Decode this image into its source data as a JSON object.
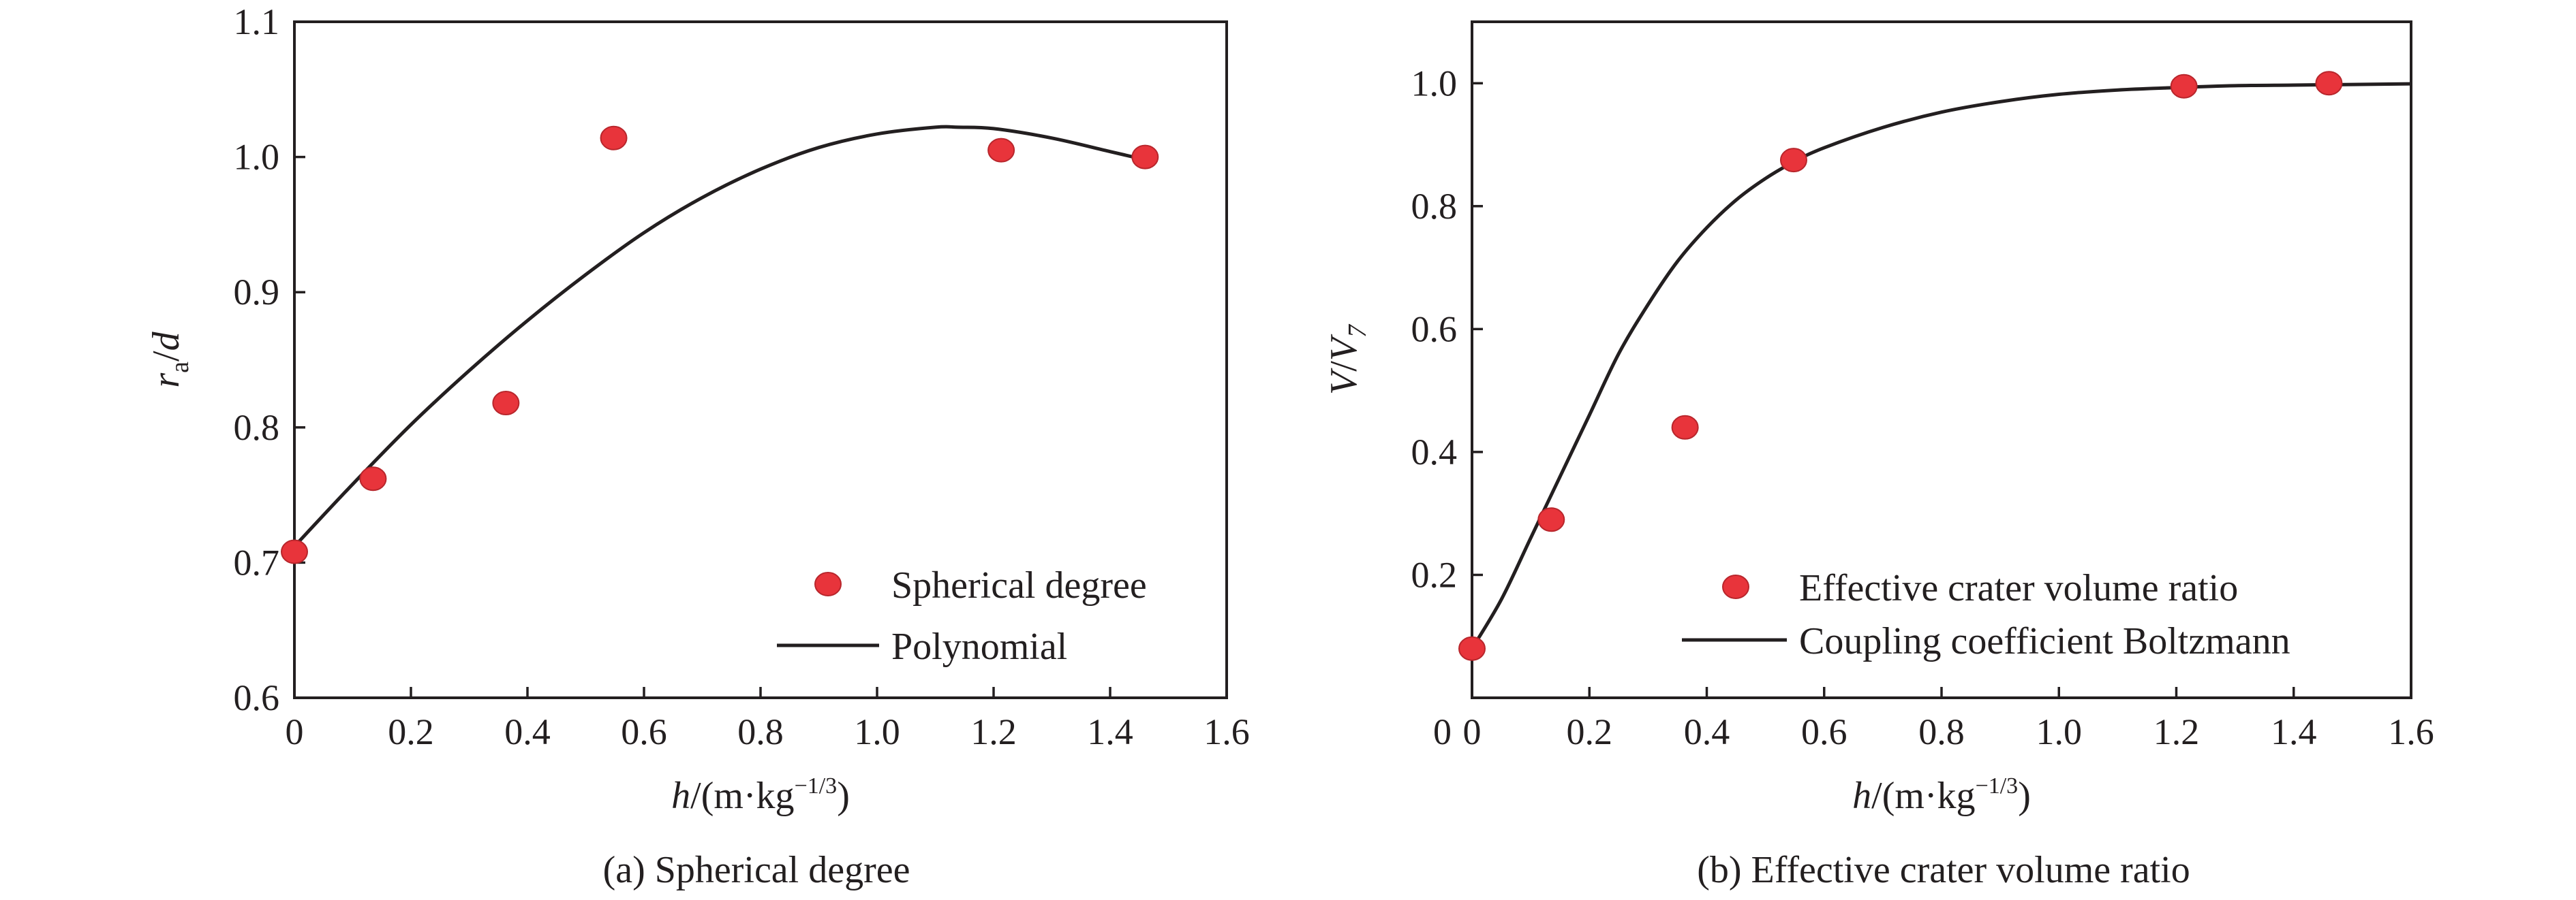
{
  "colors": {
    "points": "#e8343b",
    "line": "#231f20"
  },
  "chart_data": [
    {
      "type": "scatter",
      "caption": "(a) Spherical degree",
      "xlabel": {
        "var": "h",
        "rest": "/(m·kg",
        "sup": "−1/3",
        "close": ")"
      },
      "ylabel": {
        "var": "r",
        "sub": "a",
        "rest": "/",
        "var2": "d"
      },
      "xlim": [
        0,
        1.6
      ],
      "ylim": [
        0.6,
        1.1
      ],
      "xticks": [
        0,
        0.2,
        0.4,
        0.6,
        0.8,
        1.0,
        1.2,
        1.4,
        1.6
      ],
      "xtick_labels": [
        "0",
        "0.2",
        "0.4",
        "0.6",
        "0.8",
        "1.0",
        "1.2",
        "1.4",
        "1.6"
      ],
      "yticks": [
        0.6,
        0.7,
        0.8,
        0.9,
        1.0,
        1.1
      ],
      "ytick_labels": [
        "0.6",
        "0.7",
        "0.8",
        "0.9",
        "1.0",
        "1.1"
      ],
      "legend_position": "bottom-right",
      "series": [
        {
          "name": "Spherical degree",
          "kind": "points",
          "x": [
            0.0,
            0.135,
            0.363,
            0.548,
            1.213,
            1.46
          ],
          "y": [
            0.708,
            0.762,
            0.818,
            1.014,
            1.005,
            1.0
          ]
        },
        {
          "name": "Polynomial",
          "kind": "line",
          "x": [
            0.0,
            0.1,
            0.2,
            0.3,
            0.4,
            0.5,
            0.6,
            0.7,
            0.8,
            0.9,
            1.0,
            1.1,
            1.14,
            1.2,
            1.3,
            1.4,
            1.46
          ],
          "y": [
            0.712,
            0.758,
            0.802,
            0.842,
            0.879,
            0.913,
            0.944,
            0.97,
            0.991,
            1.007,
            1.017,
            1.022,
            1.022,
            1.021,
            1.014,
            1.004,
            0.998
          ]
        }
      ]
    },
    {
      "type": "scatter",
      "caption": "(b) Effective crater volume ratio",
      "xlabel": {
        "var": "h",
        "rest": "/(m·kg",
        "sup": "−1/3",
        "close": ")"
      },
      "ylabel": {
        "var": "V",
        "rest": "/",
        "var2": "V",
        "sub2": "7"
      },
      "xlim": [
        0,
        1.6
      ],
      "ylim": [
        0,
        1.1
      ],
      "xticks": [
        0,
        0.2,
        0.4,
        0.6,
        0.8,
        1.0,
        1.2,
        1.4,
        1.6
      ],
      "xtick_labels": [
        "0",
        "0.2",
        "0.4",
        "0.6",
        "0.8",
        "1.0",
        "1.2",
        "1.4",
        "1.6"
      ],
      "yticks": [
        0.2,
        0.4,
        0.6,
        0.8,
        1.0
      ],
      "ytick_labels": [
        "0.2",
        "0.4",
        "0.6",
        "0.8",
        "1.0"
      ],
      "legend_position": "bottom-right",
      "series": [
        {
          "name": "Effective crater volume ratio",
          "kind": "points",
          "x": [
            0.0,
            0.135,
            0.363,
            0.548,
            1.213,
            1.46
          ],
          "y": [
            0.08,
            0.29,
            0.44,
            0.875,
            0.995,
            1.0
          ]
        },
        {
          "name": "Coupling coefficient Boltzmann",
          "kind": "line",
          "x": [
            0.0,
            0.05,
            0.1,
            0.15,
            0.2,
            0.25,
            0.3,
            0.35,
            0.4,
            0.45,
            0.5,
            0.55,
            0.6,
            0.7,
            0.8,
            0.9,
            1.0,
            1.1,
            1.2,
            1.3,
            1.4,
            1.5,
            1.6
          ],
          "y": [
            0.08,
            0.16,
            0.26,
            0.36,
            0.46,
            0.56,
            0.64,
            0.71,
            0.765,
            0.81,
            0.845,
            0.873,
            0.895,
            0.928,
            0.953,
            0.97,
            0.982,
            0.989,
            0.993,
            0.996,
            0.997,
            0.998,
            0.999
          ]
        }
      ]
    }
  ]
}
